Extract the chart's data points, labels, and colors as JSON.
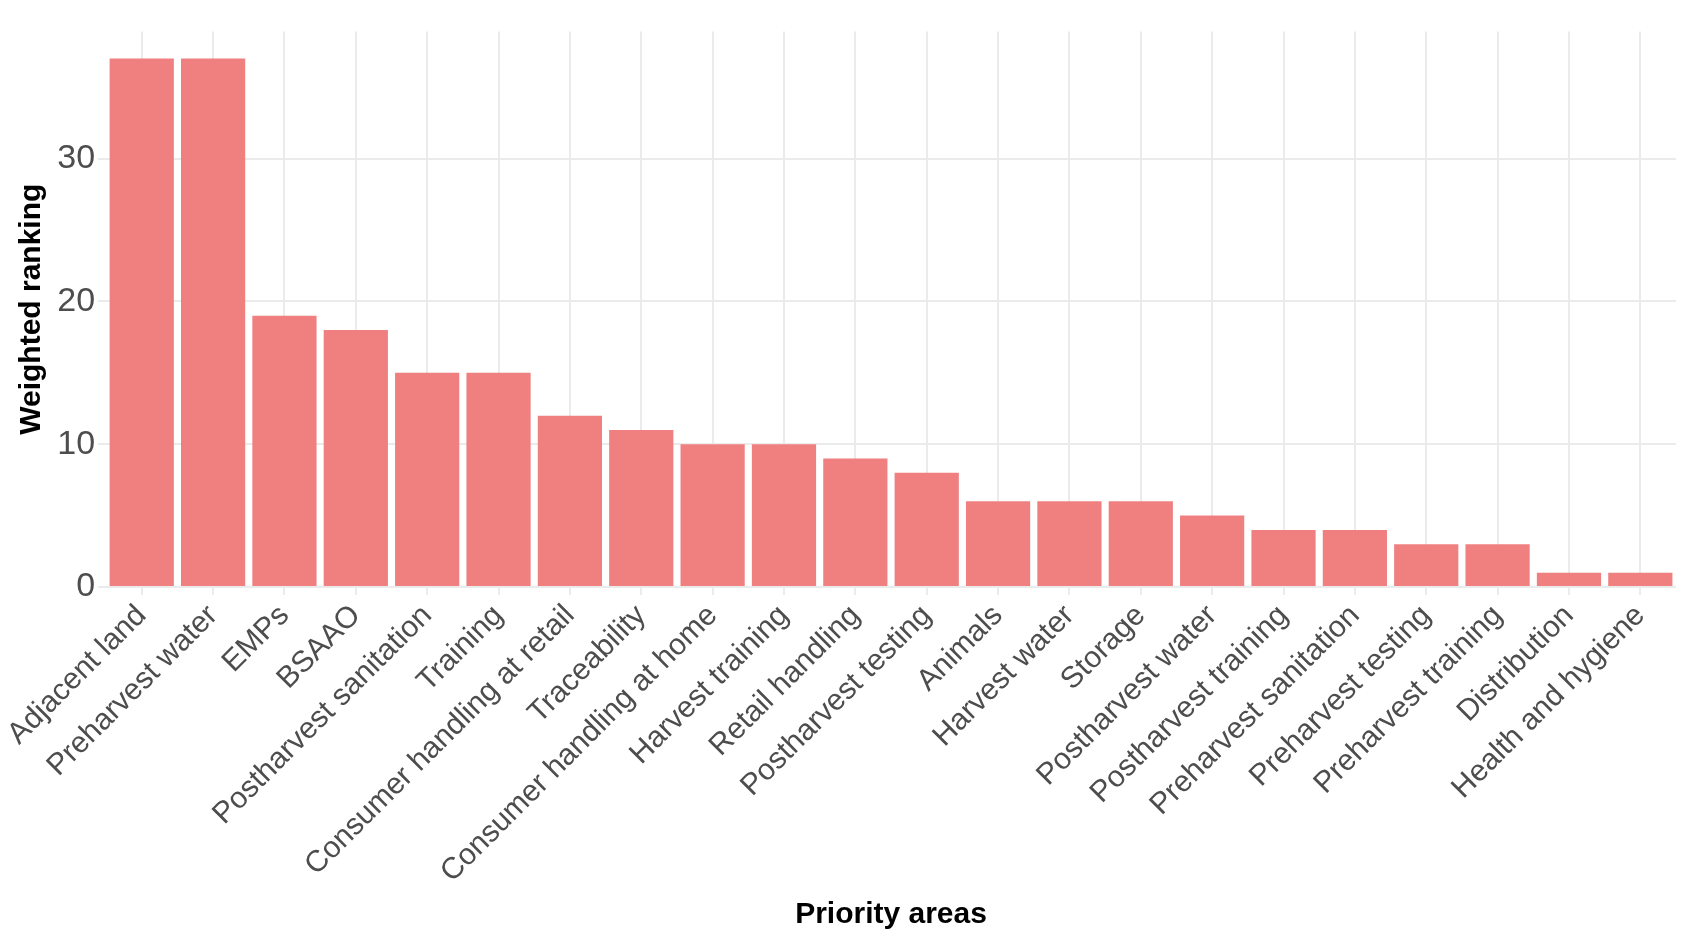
{
  "chart_data": {
    "type": "bar",
    "xlabel": "Priority areas",
    "ylabel": "Weighted ranking",
    "categories": [
      "Adjacent land",
      "Preharvest water",
      "EMPs",
      "BSAAO",
      "Postharvest sanitation",
      "Training",
      "Consumer handling at retail",
      "Traceability",
      "Consumer handling at home",
      "Harvest training",
      "Retail handling",
      "Postharvest testing",
      "Animals",
      "Harvest water",
      "Storage",
      "Postharvest water",
      "Postharvest training",
      "Preharvest sanitation",
      "Preharvest testing",
      "Preharvest training",
      "Distribution",
      "Health and hygiene"
    ],
    "values": [
      37,
      37,
      19,
      18,
      15,
      15,
      12,
      11,
      10,
      10,
      9,
      8,
      6,
      6,
      6,
      5,
      4,
      4,
      3,
      3,
      1,
      1
    ],
    "color": "#f08080",
    "ylim": [
      0,
      38.9
    ],
    "yticks": [
      0,
      10,
      20,
      30
    ],
    "grid": true,
    "legend": false
  }
}
